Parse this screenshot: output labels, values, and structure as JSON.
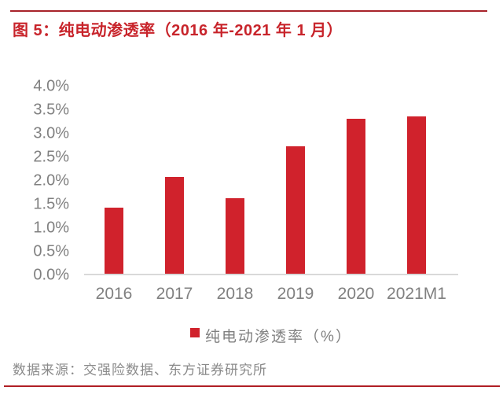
{
  "figure": {
    "title": "图 5：纯电动渗透率（2016 年-2021 年 1 月）",
    "source_note": "数据来源：交强险数据、东方证券研究所"
  },
  "legend": {
    "label": "纯电动渗透率（%）"
  },
  "colors": {
    "bar_red": "#D0222C",
    "title_red": "#C8242B",
    "rule_red_top": "#A8232B",
    "rule_red_bottom": "#B01F25",
    "axis_line_gray": "#D9D9D9",
    "label_gray": "#808080",
    "source_gray": "#8A8A8A"
  },
  "chart_data": {
    "type": "bar",
    "title": "纯电动渗透率（2016 年-2021 年 1 月）",
    "categories": [
      "2016",
      "2017",
      "2018",
      "2019",
      "2020",
      "2021M1"
    ],
    "values": [
      1.4,
      2.05,
      1.6,
      2.7,
      3.28,
      3.33
    ],
    "series_name": "纯电动渗透率（%）",
    "xlabel": "",
    "ylabel": "",
    "ylim": [
      0,
      4.0
    ],
    "ytick_step": 0.5,
    "ytick_labels": [
      "4.0%",
      "3.5%",
      "3.0%",
      "2.5%",
      "2.0%",
      "1.5%",
      "1.0%",
      "0.5%",
      "0.0%"
    ],
    "grid": false,
    "legend_position": "bottom",
    "bar_color": "#D0222C"
  }
}
